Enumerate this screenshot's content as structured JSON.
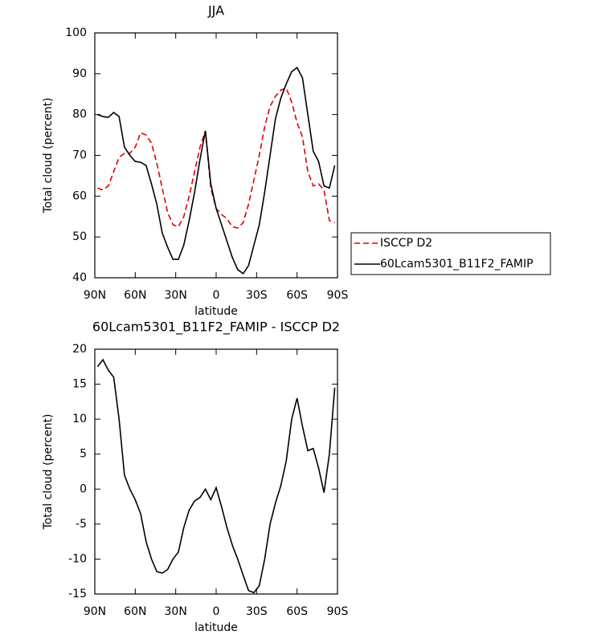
{
  "chart_data": [
    {
      "type": "line",
      "title": "JJA",
      "xlabel": "latitude",
      "ylabel": "Total cloud (percent)",
      "x": [
        88,
        84,
        80,
        76,
        72,
        68,
        64,
        60,
        56,
        52,
        48,
        44,
        40,
        36,
        32,
        28,
        24,
        20,
        16,
        12,
        8,
        4,
        0,
        -4,
        -8,
        -12,
        -16,
        -20,
        -24,
        -28,
        -32,
        -36,
        -40,
        -44,
        -48,
        -52,
        -56,
        -60,
        -64,
        -68,
        -72,
        -76,
        -80,
        -84,
        -88
      ],
      "series": [
        {
          "name": "ISCCP D2",
          "color": "#e00000",
          "dashed": true,
          "values": [
            62,
            61.5,
            62.5,
            66,
            69.5,
            70.5,
            70.5,
            72,
            75.5,
            75,
            73,
            68,
            62,
            56,
            53,
            52.5,
            55,
            60,
            66,
            72,
            76,
            62,
            57,
            55.5,
            54.5,
            52.5,
            52.2,
            53.5,
            58,
            64,
            70,
            77,
            82,
            84.5,
            86,
            86.5,
            83,
            78,
            74.5,
            66,
            62.5,
            63,
            61.5,
            54,
            53.5
          ]
        },
        {
          "name": "60Lcam5301_B11F2_FAMIP",
          "color": "#000000",
          "dashed": false,
          "values": [
            80,
            79.5,
            79.3,
            80.5,
            79.5,
            72,
            70,
            68.5,
            68.3,
            67.5,
            63,
            58,
            51,
            47.5,
            44.5,
            44.5,
            48,
            54,
            61,
            69,
            76,
            63,
            57,
            53,
            49,
            45,
            42,
            41,
            43,
            48,
            53,
            61,
            70,
            79,
            84,
            87.5,
            90.5,
            91.5,
            89,
            80,
            71,
            68.5,
            62.5,
            62,
            67.5
          ]
        }
      ],
      "xlim": [
        90,
        -90
      ],
      "xticks": [
        {
          "value": 90,
          "label": "90N"
        },
        {
          "value": 60,
          "label": "60N"
        },
        {
          "value": 30,
          "label": "30N"
        },
        0,
        {
          "value": -30,
          "label": "30S"
        },
        {
          "value": -60,
          "label": "60S"
        },
        {
          "value": -90,
          "label": "90S"
        }
      ],
      "ylim": [
        40,
        100
      ],
      "yticks": [
        40,
        50,
        60,
        70,
        80,
        90,
        100
      ],
      "legend": "right"
    },
    {
      "type": "line",
      "title": "60Lcam5301_B11F2_FAMIP - ISCCP D2",
      "xlabel": "latitude",
      "ylabel": "Total cloud (percent)",
      "x": [
        88,
        84,
        80,
        76,
        72,
        68,
        64,
        60,
        56,
        52,
        48,
        44,
        40,
        36,
        32,
        28,
        24,
        20,
        16,
        12,
        8,
        4,
        0,
        -4,
        -8,
        -12,
        -16,
        -20,
        -24,
        -28,
        -32,
        -36,
        -40,
        -44,
        -48,
        -52,
        -56,
        -60,
        -64,
        -68,
        -72,
        -76,
        -80,
        -84,
        -88
      ],
      "series": [
        {
          "color": "#000000",
          "dashed": false,
          "values": [
            17.5,
            18.5,
            17,
            16,
            10,
            2,
            0,
            -1.5,
            -3.5,
            -7.5,
            -10,
            -11.8,
            -12,
            -11.5,
            -10,
            -9,
            -5.5,
            -3,
            -1.7,
            -1.2,
            0,
            -1.5,
            0.2,
            -2.5,
            -5.5,
            -8,
            -10,
            -12.3,
            -14.5,
            -14.8,
            -13.8,
            -10,
            -5,
            -2,
            0.5,
            4,
            10,
            13,
            9,
            5.5,
            5.8,
            3,
            -0.5,
            5,
            14.5
          ]
        }
      ],
      "xlim": [
        90,
        -90
      ],
      "xticks": [
        {
          "value": 90,
          "label": "90N"
        },
        {
          "value": 60,
          "label": "60N"
        },
        {
          "value": 30,
          "label": "30N"
        },
        0,
        {
          "value": -30,
          "label": "30S"
        },
        {
          "value": -60,
          "label": "60S"
        },
        {
          "value": -90,
          "label": "90S"
        }
      ],
      "ylim": [
        -15,
        20
      ],
      "yticks": [
        -15,
        -10,
        -5,
        0,
        5,
        10,
        15,
        20
      ]
    }
  ]
}
